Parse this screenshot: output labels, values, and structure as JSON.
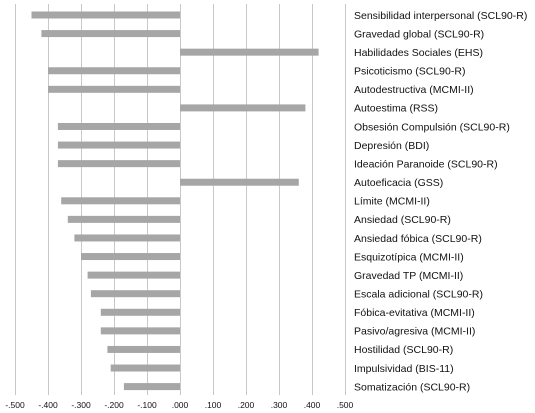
{
  "chart_data": {
    "type": "bar",
    "orientation": "horizontal",
    "title": "",
    "xlabel": "",
    "ylabel": "",
    "xlim": [
      -0.5,
      0.5
    ],
    "grid": "vertical",
    "legend": "none",
    "bar_color": "#a6a6a6",
    "grid_color": "#c8c8c8",
    "x_ticks": [
      -0.5,
      -0.4,
      -0.3,
      -0.2,
      -0.1,
      0.0,
      0.1,
      0.2,
      0.3,
      0.4,
      0.5
    ],
    "x_tick_labels": [
      "-.500",
      "-.400",
      "-.300",
      "-.200",
      "-.100",
      ".000",
      ".100",
      ".200",
      ".300",
      ".400",
      ".500"
    ],
    "categories": [
      "Sensibilidad interpersonal (SCL90-R)",
      "Gravedad global (SCL90-R)",
      "Habilidades Sociales (EHS)",
      "Psicoticismo (SCL90-R)",
      "Autodestructiva (MCMI-II)",
      "Autoestima (RSS)",
      "Obsesión Compulsión (SCL90-R)",
      "Depresión (BDI)",
      "Ideación Paranoide (SCL90-R)",
      "Autoeficacia (GSS)",
      "Límite (MCMI-II)",
      "Ansiedad (SCL90-R)",
      "Ansiedad fóbica (SCL90-R)",
      "Esquizotípica (MCMI-II)",
      "Gravedad TP (MCMI-II)",
      "Escala adicional (SCL90-R)",
      "Fóbica-evitativa (MCMI-II)",
      "Pasivo/agresiva (MCMI-II)",
      "Hostilidad (SCL90-R)",
      "Impulsividad (BIS-11)",
      "Somatización (SCL90-R)"
    ],
    "values": [
      -0.45,
      -0.42,
      0.42,
      -0.4,
      -0.4,
      0.38,
      -0.37,
      -0.37,
      -0.37,
      0.36,
      -0.36,
      -0.34,
      -0.32,
      -0.3,
      -0.28,
      -0.27,
      -0.24,
      -0.24,
      -0.22,
      -0.21,
      -0.17
    ]
  }
}
